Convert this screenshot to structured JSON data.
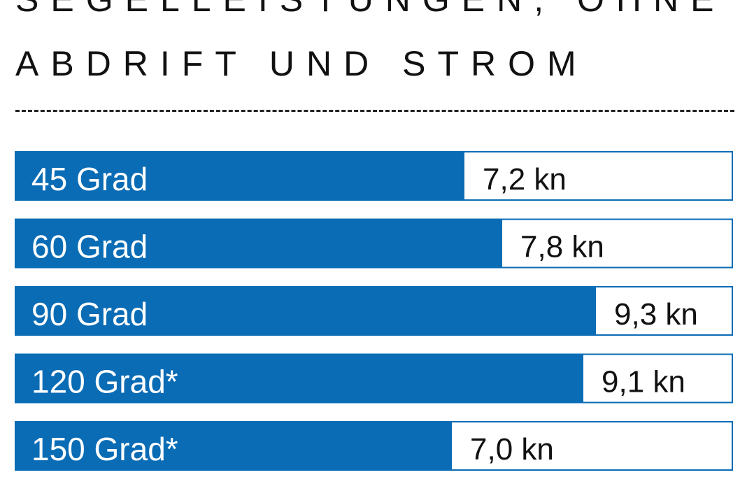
{
  "colors": {
    "bar_fill": "#0a6cb5",
    "bar_border": "#0a6cb5",
    "background": "#ffffff",
    "text": "#111111"
  },
  "header": {
    "title_line1": "SEGELLEISTUNGEN, OHNE",
    "title_line2": "ABDRIFT UND STROM"
  },
  "chart_data": {
    "type": "bar",
    "orientation": "horizontal",
    "title": "SEGELLEISTUNGEN, OHNE ABDRIFT UND STROM",
    "categories": [
      "45 Grad",
      "60 Grad",
      "90 Grad",
      "120 Grad*",
      "150 Grad*"
    ],
    "values": [
      7.2,
      7.8,
      9.3,
      9.1,
      7.0
    ],
    "value_labels": [
      "7,2 kn",
      "7,8 kn",
      "9,3 kn",
      "9,1 kn",
      "7,0 kn"
    ],
    "unit": "kn",
    "xlim": [
      0,
      11.5
    ],
    "grid": false,
    "legend": "none"
  }
}
